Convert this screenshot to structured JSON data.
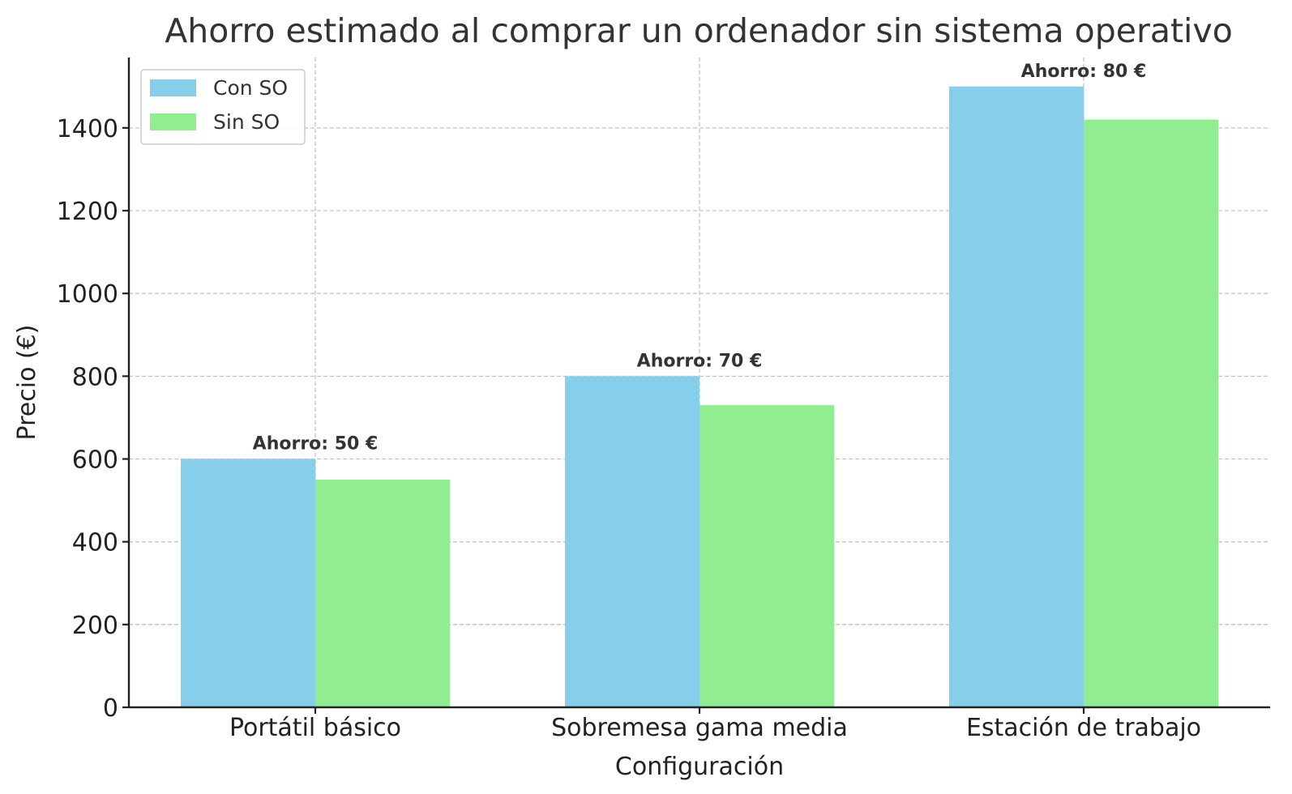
{
  "chart_data": {
    "type": "bar",
    "title": "Ahorro estimado al comprar un ordenador sin sistema operativo",
    "xlabel": "Configuración",
    "ylabel": "Precio (€)",
    "categories": [
      "Portátil básico",
      "Sobremesa gama media",
      "Estación de trabajo"
    ],
    "series": [
      {
        "name": "Con SO",
        "color": "#87ceeb",
        "values": [
          600,
          800,
          1500
        ]
      },
      {
        "name": "Sin SO",
        "color": "#90ee90",
        "values": [
          550,
          730,
          1420
        ]
      }
    ],
    "annotations": [
      "Ahorro: 50 €",
      "Ahorro: 70 €",
      "Ahorro: 80 €"
    ],
    "ylim": [
      0,
      1570
    ],
    "yticks": [
      0,
      200,
      400,
      600,
      800,
      1000,
      1200,
      1400
    ],
    "grid": true,
    "legend_position": "top-left"
  }
}
